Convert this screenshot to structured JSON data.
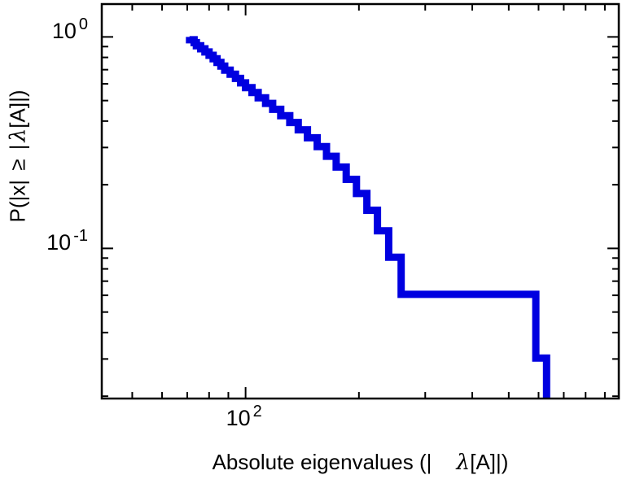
{
  "figure": {
    "background": "#ffffff",
    "axis_color": "#000000"
  },
  "chart_data": {
    "type": "line",
    "subtype": "ccdf-step",
    "title": "",
    "x_scale": "log",
    "y_scale": "log",
    "xlabel_prefix": "Absolute eigenvalues (|",
    "xlabel_lambda": "λ",
    "xlabel_suffix": "[A]|)",
    "ylabel_prefix": "P(|x| ≥ |",
    "ylabel_lambda": "λ",
    "ylabel_suffix": "[A]|)",
    "x_major_ticks": [
      {
        "value": 100,
        "base": "10",
        "exponent": "2"
      }
    ],
    "y_major_ticks": [
      {
        "value": 1,
        "base": "10",
        "exponent": "0"
      },
      {
        "value": 0.1,
        "base": "10",
        "exponent": "-1"
      }
    ],
    "x_minor_ticks": [
      50,
      60,
      70,
      80,
      90,
      200,
      300,
      400,
      500,
      600,
      700,
      800,
      900
    ],
    "y_minor_ticks": [
      0.9,
      0.8,
      0.7,
      0.6,
      0.5,
      0.4,
      0.3,
      0.2,
      0.09,
      0.08,
      0.07,
      0.06,
      0.05,
      0.04,
      0.03,
      0.02
    ],
    "xlim": [
      41.5,
      980
    ],
    "ylim": [
      0.0195,
      1.43
    ],
    "grid": false,
    "legend": false,
    "line_color": "#0000e0",
    "line_width": 9,
    "n_eigenvalues": 33,
    "ccdf_start": 1.0,
    "eigenvalues": [
      71,
      73,
      74,
      76,
      78,
      80,
      82,
      84,
      86,
      88,
      91,
      94,
      97,
      100,
      104,
      108,
      113,
      118,
      124,
      131,
      138,
      146,
      155,
      164,
      174,
      185,
      197,
      210,
      224,
      240,
      259,
      590,
      630
    ]
  }
}
